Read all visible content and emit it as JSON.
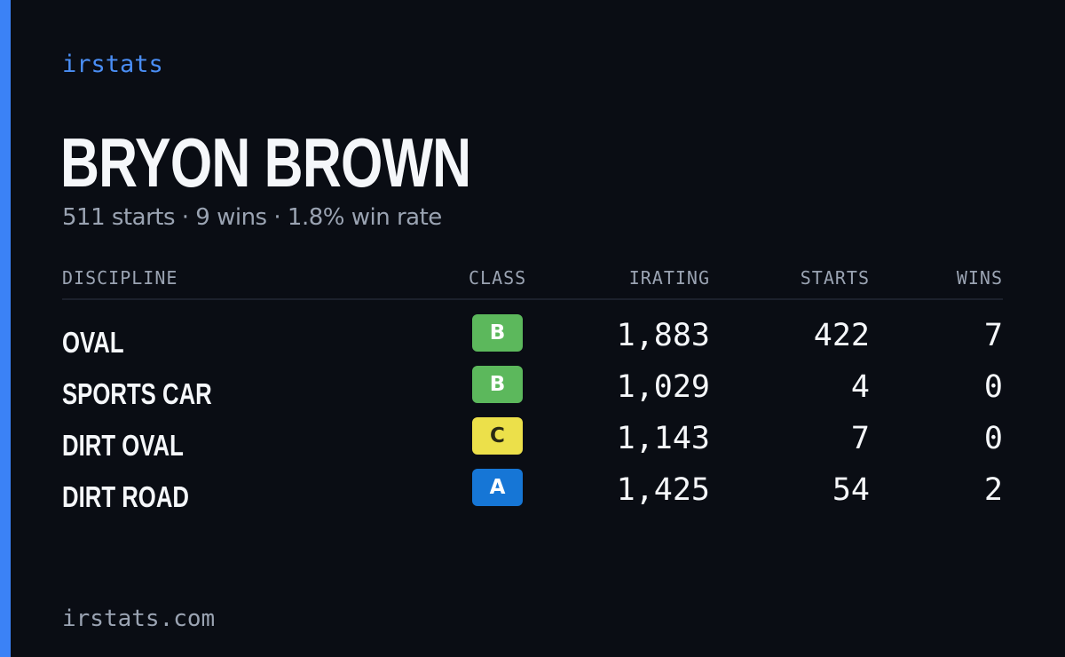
{
  "brand": {
    "label": "irstats"
  },
  "driver": {
    "name": "BRYON BROWN",
    "summary": "511 starts · 9 wins · 1.8% win rate"
  },
  "table": {
    "headers": {
      "discipline": "DISCIPLINE",
      "class": "CLASS",
      "irating": "IRATING",
      "starts": "STARTS",
      "wins": "WINS"
    },
    "rows": [
      {
        "discipline": "OVAL",
        "class": "B",
        "class_color": "#5cb85c",
        "class_text_color": "#ffffff",
        "irating": "1,883",
        "starts": "422",
        "wins": "7"
      },
      {
        "discipline": "SPORTS CAR",
        "class": "B",
        "class_color": "#5cb85c",
        "class_text_color": "#ffffff",
        "irating": "1,029",
        "starts": "4",
        "wins": "0"
      },
      {
        "discipline": "DIRT OVAL",
        "class": "C",
        "class_color": "#ece04a",
        "class_text_color": "#2a2a14",
        "irating": "1,143",
        "starts": "7",
        "wins": "0"
      },
      {
        "discipline": "DIRT ROAD",
        "class": "A",
        "class_color": "#1676d6",
        "class_text_color": "#ffffff",
        "irating": "1,425",
        "starts": "54",
        "wins": "2"
      }
    ]
  },
  "footer": {
    "domain": "irstats.com"
  },
  "colors": {
    "accent": "#3b82f6",
    "background": "#0a0d14"
  }
}
